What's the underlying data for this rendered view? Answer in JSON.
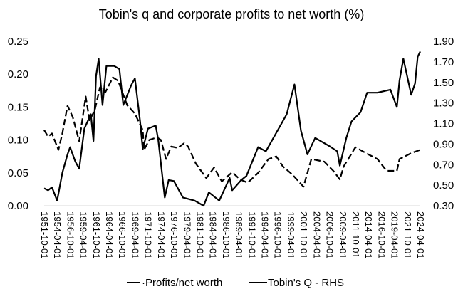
{
  "chart_data": {
    "type": "line",
    "title": "Tobin's q and corporate profits to net worth (%)",
    "xlabel": "",
    "ylabel": "",
    "y2label": "",
    "ylim": [
      0,
      0.25
    ],
    "y2lim": [
      0.3,
      1.9
    ],
    "xlim": [
      "1951-10-01",
      "2024-04-01"
    ],
    "grid": false,
    "legend_position": "bottom",
    "yticks": [
      "0.00",
      "0.05",
      "0.10",
      "0.15",
      "0.20",
      "0.25"
    ],
    "y2ticks": [
      "0.30",
      "0.50",
      "0.70",
      "0.90",
      "1.10",
      "1.30",
      "1.50",
      "1.70",
      "1.90"
    ],
    "xticks": [
      "1951-10-01",
      "1954-04-01",
      "1956-10-01",
      "1959-04-01",
      "1961-10-01",
      "1964-04-01",
      "1966-10-01",
      "1969-04-01",
      "1971-10-01",
      "1974-04-01",
      "1976-10-01",
      "1979-04-01",
      "1981-10-01",
      "1984-04-01",
      "1986-10-01",
      "1989-04-01",
      "1991-10-01",
      "1994-04-01",
      "1996-10-01",
      "1999-04-01",
      "2001-10-01",
      "2004-04-01",
      "2006-10-01",
      "2009-04-01",
      "2011-10-01",
      "2014-04-01",
      "2016-10-01",
      "2019-04-01",
      "2021-10-01",
      "2024-04-01"
    ],
    "series": [
      {
        "name": "Profits/net worth",
        "legend_label": "·Profits/net worth",
        "axis": "left",
        "style": "dashed",
        "color": "#000000",
        "points": [
          [
            "1951-10-01",
            0.115
          ],
          [
            "1952-07-01",
            0.105
          ],
          [
            "1953-04-01",
            0.11
          ],
          [
            "1954-07-01",
            0.085
          ],
          [
            "1955-04-01",
            0.11
          ],
          [
            "1956-04-01",
            0.152
          ],
          [
            "1957-04-01",
            0.135
          ],
          [
            "1958-07-01",
            0.098
          ],
          [
            "1959-10-01",
            0.166
          ],
          [
            "1960-07-01",
            0.13
          ],
          [
            "1961-07-01",
            0.145
          ],
          [
            "1962-07-01",
            0.18
          ],
          [
            "1963-07-01",
            0.172
          ],
          [
            "1965-01-01",
            0.195
          ],
          [
            "1966-01-01",
            0.19
          ],
          [
            "1967-10-01",
            0.153
          ],
          [
            "1969-04-01",
            0.14
          ],
          [
            "1970-10-01",
            0.115
          ],
          [
            "1971-01-01",
            0.085
          ],
          [
            "1972-01-01",
            0.1
          ],
          [
            "1973-07-01",
            0.104
          ],
          [
            "1974-04-01",
            0.1
          ],
          [
            "1975-04-01",
            0.071
          ],
          [
            "1976-04-01",
            0.09
          ],
          [
            "1977-07-01",
            0.088
          ],
          [
            "1978-10-01",
            0.095
          ],
          [
            "1979-07-01",
            0.09
          ],
          [
            "1981-01-01",
            0.064
          ],
          [
            "1983-01-01",
            0.042
          ],
          [
            "1984-07-01",
            0.058
          ],
          [
            "1986-01-01",
            0.037
          ],
          [
            "1988-01-01",
            0.051
          ],
          [
            "1989-07-01",
            0.04
          ],
          [
            "1991-01-01",
            0.035
          ],
          [
            "1993-01-01",
            0.05
          ],
          [
            "1995-01-01",
            0.071
          ],
          [
            "1996-07-01",
            0.075
          ],
          [
            "1997-10-01",
            0.06
          ],
          [
            "1999-07-01",
            0.048
          ],
          [
            "2001-10-01",
            0.029
          ],
          [
            "2003-04-01",
            0.071
          ],
          [
            "2005-10-01",
            0.067
          ],
          [
            "2007-07-01",
            0.053
          ],
          [
            "2008-10-01",
            0.04
          ],
          [
            "2009-07-01",
            0.06
          ],
          [
            "2011-10-01",
            0.089
          ],
          [
            "2014-04-01",
            0.078
          ],
          [
            "2016-01-01",
            0.071
          ],
          [
            "2017-10-01",
            0.053
          ],
          [
            "2019-10-01",
            0.053
          ],
          [
            "2020-04-01",
            0.071
          ],
          [
            "2022-07-01",
            0.08
          ],
          [
            "2024-04-01",
            0.085
          ]
        ]
      },
      {
        "name": "Tobin's Q - RHS",
        "legend_label": "Tobin's Q - RHS",
        "axis": "right",
        "style": "solid",
        "color": "#000000",
        "points": [
          [
            "1951-10-01",
            0.47
          ],
          [
            "1952-07-01",
            0.45
          ],
          [
            "1953-04-01",
            0.48
          ],
          [
            "1954-04-01",
            0.35
          ],
          [
            "1955-04-01",
            0.62
          ],
          [
            "1956-04-01",
            0.8
          ],
          [
            "1956-10-01",
            0.87
          ],
          [
            "1957-10-01",
            0.73
          ],
          [
            "1958-07-01",
            0.66
          ],
          [
            "1959-07-01",
            1.05
          ],
          [
            "1960-10-01",
            1.19
          ],
          [
            "1961-04-01",
            0.93
          ],
          [
            "1961-10-01",
            1.56
          ],
          [
            "1962-04-01",
            1.73
          ],
          [
            "1963-01-01",
            1.28
          ],
          [
            "1963-10-01",
            1.66
          ],
          [
            "1965-04-01",
            1.66
          ],
          [
            "1966-04-01",
            1.63
          ],
          [
            "1967-01-01",
            1.28
          ],
          [
            "1968-07-01",
            1.47
          ],
          [
            "1969-04-01",
            1.54
          ],
          [
            "1970-04-01",
            1.12
          ],
          [
            "1970-10-01",
            0.85
          ],
          [
            "1971-10-01",
            1.05
          ],
          [
            "1973-04-01",
            1.08
          ],
          [
            "1973-10-01",
            0.94
          ],
          [
            "1975-01-01",
            0.38
          ],
          [
            "1975-10-01",
            0.55
          ],
          [
            "1976-10-01",
            0.54
          ],
          [
            "1978-07-01",
            0.38
          ],
          [
            "1980-10-01",
            0.35
          ],
          [
            "1982-07-01",
            0.3
          ],
          [
            "1983-07-01",
            0.43
          ],
          [
            "1985-07-01",
            0.35
          ],
          [
            "1987-07-01",
            0.57
          ],
          [
            "1988-01-01",
            0.45
          ],
          [
            "1989-10-01",
            0.55
          ],
          [
            "1990-10-01",
            0.59
          ],
          [
            "1993-01-01",
            0.87
          ],
          [
            "1994-07-01",
            0.83
          ],
          [
            "1996-07-01",
            1.01
          ],
          [
            "1998-07-01",
            1.19
          ],
          [
            "2000-01-01",
            1.48
          ],
          [
            "2001-04-01",
            1.03
          ],
          [
            "2002-07-01",
            0.8
          ],
          [
            "2004-01-01",
            0.96
          ],
          [
            "2006-10-01",
            0.88
          ],
          [
            "2008-04-01",
            0.83
          ],
          [
            "2008-10-01",
            0.69
          ],
          [
            "2010-01-01",
            0.96
          ],
          [
            "2011-01-01",
            1.12
          ],
          [
            "2012-10-01",
            1.21
          ],
          [
            "2014-01-01",
            1.4
          ],
          [
            "2016-01-01",
            1.4
          ],
          [
            "2018-07-01",
            1.43
          ],
          [
            "2019-10-01",
            1.26
          ],
          [
            "2020-04-01",
            1.52
          ],
          [
            "2021-01-01",
            1.73
          ],
          [
            "2022-07-01",
            1.38
          ],
          [
            "2023-04-01",
            1.49
          ],
          [
            "2023-10-01",
            1.75
          ],
          [
            "2024-04-01",
            1.8
          ]
        ]
      }
    ]
  }
}
